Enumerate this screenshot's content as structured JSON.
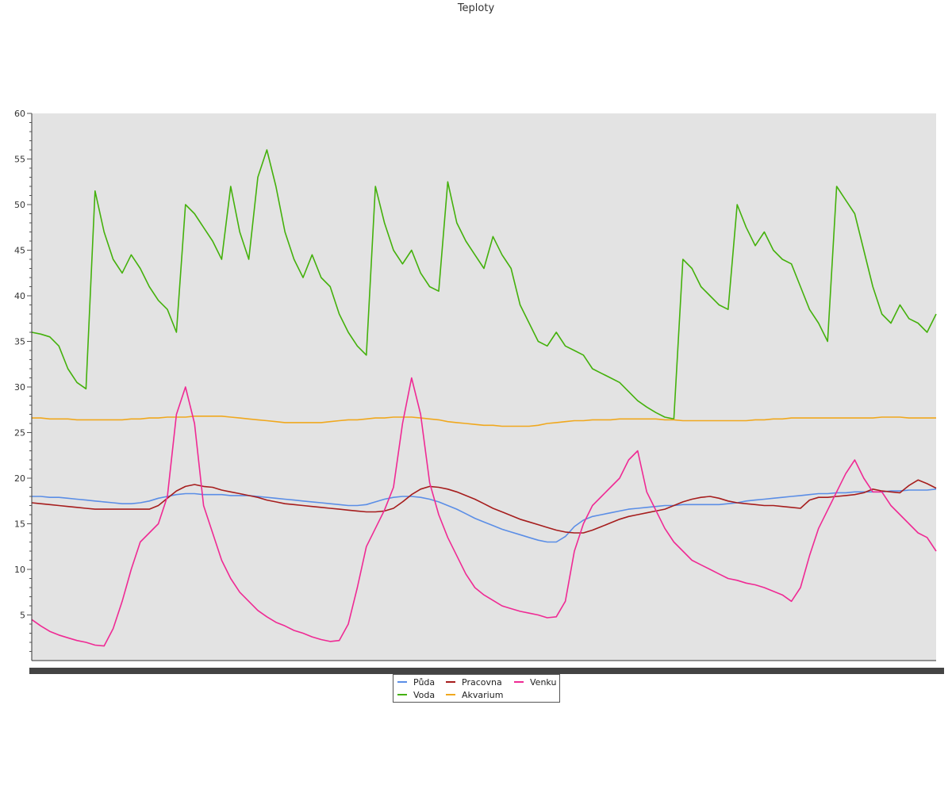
{
  "chart_data": {
    "type": "line",
    "title": "Teploty",
    "xlabel": "",
    "ylabel": "",
    "ylim": [
      0,
      60
    ],
    "y_ticks": [
      5,
      10,
      15,
      20,
      25,
      30,
      35,
      40,
      45,
      50,
      55,
      60
    ],
    "x_tick_labels_legible": false,
    "grid": false,
    "plot_background": "#e3e3e3",
    "legend_position": "bottom-center",
    "x": [
      0,
      1,
      2,
      3,
      4,
      5,
      6,
      7,
      8,
      9,
      10,
      11,
      12,
      13,
      14,
      15,
      16,
      17,
      18,
      19,
      20,
      21,
      22,
      23,
      24,
      25,
      26,
      27,
      28,
      29,
      30,
      31,
      32,
      33,
      34,
      35,
      36,
      37,
      38,
      39,
      40,
      41,
      42,
      43,
      44,
      45,
      46,
      47,
      48,
      49,
      50,
      51,
      52,
      53,
      54,
      55,
      56,
      57,
      58,
      59,
      60,
      61,
      62,
      63,
      64,
      65,
      66,
      67,
      68,
      69,
      70,
      71,
      72,
      73,
      74,
      75,
      76,
      77,
      78,
      79,
      80,
      81,
      82,
      83,
      84,
      85,
      86,
      87,
      88,
      89,
      90,
      91,
      92,
      93,
      94,
      95,
      96,
      97,
      98,
      99,
      100
    ],
    "series": [
      {
        "name": "Půda",
        "color": "#5b8ee6",
        "values": [
          18.0,
          18.0,
          17.9,
          17.9,
          17.8,
          17.7,
          17.6,
          17.5,
          17.4,
          17.3,
          17.2,
          17.2,
          17.3,
          17.5,
          17.8,
          18.0,
          18.2,
          18.3,
          18.3,
          18.2,
          18.2,
          18.2,
          18.1,
          18.1,
          18.1,
          18.0,
          17.9,
          17.8,
          17.7,
          17.6,
          17.5,
          17.4,
          17.3,
          17.2,
          17.1,
          17.0,
          17.0,
          17.1,
          17.4,
          17.7,
          17.9,
          18.0,
          18.0,
          17.9,
          17.7,
          17.4,
          17.0,
          16.6,
          16.1,
          15.6,
          15.2,
          14.8,
          14.4,
          14.1,
          13.8,
          13.5,
          13.2,
          13.0,
          13.0,
          13.6,
          14.7,
          15.4,
          15.8,
          16.0,
          16.2,
          16.4,
          16.6,
          16.7,
          16.8,
          16.9,
          17.0,
          17.0,
          17.1,
          17.1,
          17.1,
          17.1,
          17.1,
          17.2,
          17.3,
          17.5,
          17.6,
          17.7,
          17.8,
          17.9,
          18.0,
          18.1,
          18.2,
          18.3,
          18.3,
          18.4,
          18.4,
          18.5,
          18.5,
          18.5,
          18.5,
          18.6,
          18.6,
          18.7,
          18.7,
          18.7,
          18.8
        ]
      },
      {
        "name": "Voda",
        "color": "#44b10c",
        "values": [
          36.0,
          35.8,
          35.5,
          34.5,
          32.0,
          30.5,
          29.8,
          51.5,
          47.0,
          44.0,
          42.5,
          44.5,
          43.0,
          41.0,
          39.5,
          38.5,
          36.0,
          50.0,
          49.0,
          47.5,
          46.0,
          44.0,
          52.0,
          47.0,
          44.0,
          53.0,
          56.0,
          52.0,
          47.0,
          44.0,
          42.0,
          44.5,
          42.0,
          41.0,
          38.0,
          36.0,
          34.5,
          33.5,
          52.0,
          48.0,
          45.0,
          43.5,
          45.0,
          42.5,
          41.0,
          40.5,
          52.5,
          48.0,
          46.0,
          44.5,
          43.0,
          46.5,
          44.5,
          43.0,
          39.0,
          37.0,
          35.0,
          34.5,
          36.0,
          34.5,
          34.0,
          33.5,
          32.0,
          31.5,
          31.0,
          30.5,
          29.5,
          28.5,
          27.8,
          27.2,
          26.7,
          26.5,
          44.0,
          43.0,
          41.0,
          40.0,
          39.0,
          38.5,
          50.0,
          47.5,
          45.5,
          47.0,
          45.0,
          44.0,
          43.5,
          41.0,
          38.5,
          37.0,
          35.0,
          52.0,
          50.5,
          49.0,
          45.0,
          41.0,
          38.0,
          37.0,
          39.0,
          37.5,
          37.0,
          36.0,
          38.0
        ]
      },
      {
        "name": "Pracovna",
        "color": "#a61d1d",
        "values": [
          17.3,
          17.2,
          17.1,
          17.0,
          16.9,
          16.8,
          16.7,
          16.6,
          16.6,
          16.6,
          16.6,
          16.6,
          16.6,
          16.6,
          17.0,
          17.8,
          18.6,
          19.1,
          19.3,
          19.1,
          19.0,
          18.7,
          18.5,
          18.3,
          18.1,
          17.9,
          17.6,
          17.4,
          17.2,
          17.1,
          17.0,
          16.9,
          16.8,
          16.7,
          16.6,
          16.5,
          16.4,
          16.3,
          16.3,
          16.4,
          16.7,
          17.4,
          18.2,
          18.8,
          19.1,
          19.0,
          18.8,
          18.5,
          18.1,
          17.7,
          17.2,
          16.7,
          16.3,
          15.9,
          15.5,
          15.2,
          14.9,
          14.6,
          14.3,
          14.1,
          14.0,
          14.0,
          14.3,
          14.7,
          15.1,
          15.5,
          15.8,
          16.0,
          16.2,
          16.4,
          16.6,
          17.0,
          17.4,
          17.7,
          17.9,
          18.0,
          17.8,
          17.5,
          17.3,
          17.2,
          17.1,
          17.0,
          17.0,
          16.9,
          16.8,
          16.7,
          17.6,
          17.9,
          17.9,
          18.0,
          18.1,
          18.2,
          18.4,
          18.8,
          18.6,
          18.5,
          18.4,
          19.2,
          19.8,
          19.4,
          18.9
        ]
      },
      {
        "name": "Akvarium",
        "color": "#f0a81e",
        "values": [
          26.6,
          26.6,
          26.5,
          26.5,
          26.5,
          26.4,
          26.4,
          26.4,
          26.4,
          26.4,
          26.4,
          26.5,
          26.5,
          26.6,
          26.6,
          26.7,
          26.7,
          26.7,
          26.8,
          26.8,
          26.8,
          26.8,
          26.7,
          26.6,
          26.5,
          26.4,
          26.3,
          26.2,
          26.1,
          26.1,
          26.1,
          26.1,
          26.1,
          26.2,
          26.3,
          26.4,
          26.4,
          26.5,
          26.6,
          26.6,
          26.7,
          26.7,
          26.7,
          26.6,
          26.5,
          26.4,
          26.2,
          26.1,
          26.0,
          25.9,
          25.8,
          25.8,
          25.7,
          25.7,
          25.7,
          25.7,
          25.8,
          26.0,
          26.1,
          26.2,
          26.3,
          26.3,
          26.4,
          26.4,
          26.4,
          26.5,
          26.5,
          26.5,
          26.5,
          26.5,
          26.4,
          26.4,
          26.3,
          26.3,
          26.3,
          26.3,
          26.3,
          26.3,
          26.3,
          26.3,
          26.4,
          26.4,
          26.5,
          26.5,
          26.6,
          26.6,
          26.6,
          26.6,
          26.6,
          26.6,
          26.6,
          26.6,
          26.6,
          26.6,
          26.7,
          26.7,
          26.7,
          26.6,
          26.6,
          26.6,
          26.6
        ]
      },
      {
        "name": "Venku",
        "color": "#ef2a94",
        "values": [
          4.5,
          3.8,
          3.2,
          2.8,
          2.5,
          2.2,
          2.0,
          1.7,
          1.6,
          3.5,
          6.5,
          10.0,
          13.0,
          14.0,
          15.0,
          18.0,
          27.0,
          30.0,
          26.0,
          17.0,
          14.0,
          11.0,
          9.0,
          7.5,
          6.5,
          5.5,
          4.8,
          4.2,
          3.8,
          3.3,
          3.0,
          2.6,
          2.3,
          2.1,
          2.2,
          4.0,
          8.0,
          12.5,
          14.5,
          16.5,
          19.0,
          26.0,
          31.0,
          27.0,
          19.5,
          16.0,
          13.5,
          11.5,
          9.5,
          8.0,
          7.2,
          6.6,
          6.0,
          5.7,
          5.4,
          5.2,
          5.0,
          4.7,
          4.8,
          6.5,
          12.0,
          15.0,
          17.0,
          18.0,
          19.0,
          20.0,
          22.0,
          23.0,
          18.5,
          16.5,
          14.5,
          13.0,
          12.0,
          11.0,
          10.5,
          10.0,
          9.5,
          9.0,
          8.8,
          8.5,
          8.3,
          8.0,
          7.6,
          7.2,
          6.5,
          8.0,
          11.5,
          14.5,
          16.5,
          18.5,
          20.5,
          22.0,
          20.0,
          18.5,
          18.5,
          17.0,
          16.0,
          15.0,
          14.0,
          13.5,
          12.0
        ]
      }
    ]
  }
}
